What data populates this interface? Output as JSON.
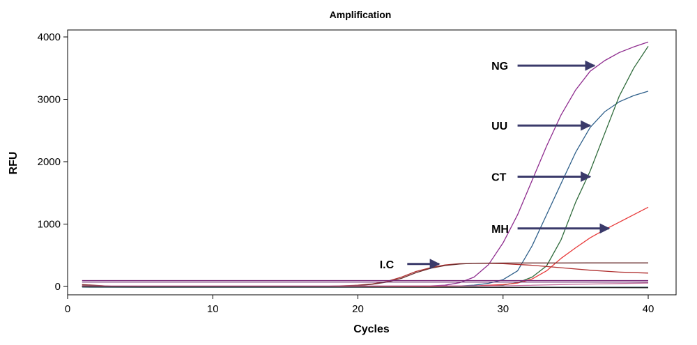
{
  "chart_data": {
    "type": "line",
    "title": "Amplification",
    "xlabel": "Cycles",
    "ylabel": "RFU",
    "xlim": [
      0,
      42
    ],
    "ylim": [
      -100,
      4200
    ],
    "xticks": [
      0,
      10,
      20,
      30,
      40
    ],
    "yticks": [
      0,
      1000,
      2000,
      3000,
      4000
    ],
    "grid": false,
    "series": [
      {
        "color": "#8e2b8e",
        "x": [
          1,
          5,
          10,
          15,
          20,
          24,
          25,
          26,
          27,
          28,
          29,
          30,
          31,
          32,
          33,
          34,
          35,
          36,
          37,
          38,
          39,
          40
        ],
        "y": [
          5,
          5,
          5,
          5,
          5,
          6,
          10,
          20,
          60,
          150,
          350,
          700,
          1150,
          1700,
          2250,
          2750,
          3150,
          3450,
          3620,
          3750,
          3840,
          3920
        ]
      },
      {
        "color": "#2e5f8a",
        "x": [
          1,
          5,
          10,
          15,
          20,
          25,
          27,
          28,
          29,
          30,
          31,
          32,
          33,
          34,
          35,
          36,
          37,
          38,
          39,
          40
        ],
        "y": [
          3,
          3,
          3,
          3,
          3,
          4,
          8,
          20,
          50,
          110,
          250,
          650,
          1150,
          1650,
          2150,
          2550,
          2800,
          2960,
          3060,
          3130
        ]
      },
      {
        "color": "#2e6a3a",
        "x": [
          1,
          5,
          10,
          15,
          20,
          25,
          28,
          29,
          30,
          31,
          32,
          33,
          34,
          35,
          36,
          37,
          38,
          39,
          40
        ],
        "y": [
          2,
          2,
          2,
          2,
          2,
          3,
          5,
          10,
          25,
          60,
          150,
          330,
          750,
          1350,
          1850,
          2450,
          3050,
          3500,
          3850
        ]
      },
      {
        "color": "#e83a3a",
        "x": [
          1,
          5,
          10,
          15,
          20,
          25,
          28,
          30,
          31,
          32,
          33,
          34,
          35,
          36,
          37,
          38,
          39,
          40
        ],
        "y": [
          0,
          0,
          0,
          0,
          0,
          2,
          10,
          30,
          55,
          120,
          250,
          450,
          620,
          780,
          910,
          1030,
          1150,
          1270
        ]
      },
      {
        "color": "#b03030",
        "x": [
          1,
          3,
          5,
          10,
          15,
          18,
          20,
          21,
          22,
          23,
          24,
          25,
          26,
          27,
          28,
          29,
          30,
          32,
          34,
          36,
          38,
          40
        ],
        "y": [
          30,
          5,
          3,
          3,
          3,
          5,
          20,
          40,
          80,
          150,
          240,
          300,
          345,
          365,
          370,
          370,
          365,
          340,
          300,
          260,
          230,
          215
        ]
      },
      {
        "color": "#6b3030",
        "x": [
          1,
          3,
          5,
          10,
          15,
          18,
          20,
          21,
          22,
          23,
          24,
          25,
          26,
          27,
          28,
          29,
          30,
          32,
          34,
          36,
          38,
          40
        ],
        "y": [
          25,
          5,
          2,
          2,
          2,
          3,
          15,
          35,
          70,
          130,
          220,
          290,
          335,
          360,
          372,
          374,
          375,
          376,
          377,
          378,
          378,
          378
        ]
      },
      {
        "color": "#7a2a7a",
        "x": [
          1,
          40
        ],
        "y": [
          95,
          95
        ]
      },
      {
        "color": "#7a3a7a",
        "x": [
          1,
          40
        ],
        "y": [
          70,
          70
        ]
      },
      {
        "color": "#c06a9a",
        "x": [
          1,
          20,
          30,
          35,
          40
        ],
        "y": [
          8,
          8,
          10,
          35,
          55
        ]
      },
      {
        "color": "#1a4a5a",
        "x": [
          1,
          5,
          10,
          20,
          30,
          40
        ],
        "y": [
          -10,
          -12,
          -12,
          -12,
          -12,
          -12
        ]
      },
      {
        "color": "#2a2a2a",
        "x": [
          1,
          5,
          10,
          20,
          30,
          40
        ],
        "y": [
          -5,
          -8,
          -8,
          -10,
          -15,
          -20
        ]
      }
    ],
    "annotations": [
      {
        "label": "NG",
        "x_text": 29.2,
        "y_text": 3540,
        "x_arrow_start": 31.0,
        "x_arrow_end": 36.3,
        "y_arrow": 3540
      },
      {
        "label": "UU",
        "x_text": 29.2,
        "y_text": 2580,
        "x_arrow_start": 31.0,
        "x_arrow_end": 36.0,
        "y_arrow": 2580
      },
      {
        "label": "CT",
        "x_text": 29.2,
        "y_text": 1760,
        "x_arrow_start": 31.0,
        "x_arrow_end": 36.0,
        "y_arrow": 1760
      },
      {
        "label": "MH",
        "x_text": 29.2,
        "y_text": 930,
        "x_arrow_start": 31.0,
        "x_arrow_end": 37.3,
        "y_arrow": 930
      },
      {
        "label": "I.C",
        "x_text": 21.5,
        "y_text": 360,
        "x_arrow_start": 23.4,
        "x_arrow_end": 25.6,
        "y_arrow": 360
      }
    ],
    "arrow_color": "#3a3a6a"
  }
}
